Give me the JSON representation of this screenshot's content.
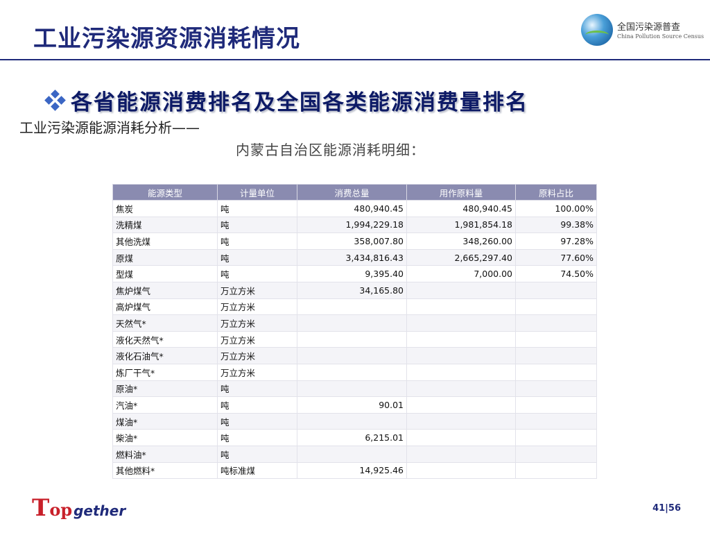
{
  "header": {
    "title": "工业污染源资源消耗情况",
    "logo_cn": "全国污染源普查",
    "logo_en": "China Pollution Source Census"
  },
  "subtitle": "各省能源消费排名及全国各类能源消费量排名",
  "analysis_line": "工业污染源能源消耗分析——",
  "detail_line": "内蒙古自治区能源消耗明细：",
  "table": {
    "headers": [
      "能源类型",
      "计量单位",
      "消费总量",
      "用作原料量",
      "原料占比"
    ],
    "rows": [
      [
        "焦炭",
        "吨",
        "480,940.45",
        "480,940.45",
        "100.00%"
      ],
      [
        "洗精煤",
        "吨",
        "1,994,229.18",
        "1,981,854.18",
        "99.38%"
      ],
      [
        "其他洗煤",
        "吨",
        "358,007.80",
        "348,260.00",
        "97.28%"
      ],
      [
        "原煤",
        "吨",
        "3,434,816.43",
        "2,665,297.40",
        "77.60%"
      ],
      [
        "型煤",
        "吨",
        "9,395.40",
        "7,000.00",
        "74.50%"
      ],
      [
        "焦炉煤气",
        "万立方米",
        "34,165.80",
        "",
        ""
      ],
      [
        "高炉煤气",
        "万立方米",
        "",
        "",
        ""
      ],
      [
        "天然气*",
        "万立方米",
        "",
        "",
        ""
      ],
      [
        "液化天然气*",
        "万立方米",
        "",
        "",
        ""
      ],
      [
        "液化石油气*",
        "万立方米",
        "",
        "",
        ""
      ],
      [
        "炼厂干气*",
        "万立方米",
        "",
        "",
        ""
      ],
      [
        "原油*",
        "吨",
        "",
        "",
        ""
      ],
      [
        "汽油*",
        "吨",
        "90.01",
        "",
        ""
      ],
      [
        "煤油*",
        "吨",
        "",
        "",
        ""
      ],
      [
        "柴油*",
        "吨",
        "6,215.01",
        "",
        ""
      ],
      [
        "燃料油*",
        "吨",
        "",
        "",
        ""
      ],
      [
        "其他燃料*",
        "吨标准煤",
        "14,925.46",
        "",
        ""
      ]
    ]
  },
  "footer": {
    "brand_t": "T",
    "brand_op": "op",
    "brand_gether": "gether",
    "page": "41|56"
  }
}
